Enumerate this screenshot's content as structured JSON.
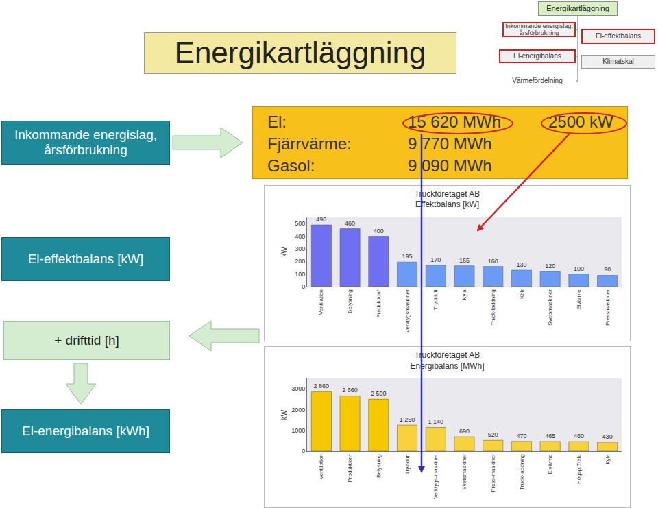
{
  "slide": {
    "title": "Energikartläggning",
    "hierarchy": {
      "root": "Energikartläggning",
      "items": [
        "Inkommande energislag, årsförbrukning",
        "El-energibalans",
        "Värmefördelning"
      ],
      "side_items": [
        "El-effektbalans",
        "Klimatskal"
      ]
    },
    "steps": [
      "Inkommande energislag, årsförbrukning",
      "El-effektbalans [kW]",
      "+ drifttid [h]",
      "El-energibalans [kWh]"
    ],
    "consumption": [
      {
        "label": "El:",
        "value": "15 620 MWh",
        "power": "2500 kW"
      },
      {
        "label": "Fjärrvärme:",
        "value": "9 770 MWh"
      },
      {
        "label": "Gasol:",
        "value": "9 090 MWh"
      }
    ]
  },
  "chart_data": [
    {
      "type": "bar",
      "title": [
        "Truckföretaget AB",
        "Effektbalans [kW]"
      ],
      "y_label": "kW",
      "categories": [
        "Ventilation",
        "Belysning",
        "Produktion*",
        "Verktygsmaskiner",
        "Tryckluft",
        "Kyla",
        "Truck-laddning",
        "Kök",
        "Svetsmaskiner",
        "Elvärme",
        "Pressmaskiner"
      ],
      "values": [
        490,
        460,
        400,
        195,
        170,
        165,
        160,
        130,
        120,
        100,
        90
      ],
      "colors": [
        "#6f6ff2",
        "#6f6ff2",
        "#6f6ff2",
        "#6a9cf5",
        "#6a9cf5",
        "#6a9cf5",
        "#6a9cf5",
        "#6a9cf5",
        "#6a9cf5",
        "#6a9cf5",
        "#6a9cf5"
      ],
      "ylim": [
        0,
        550
      ],
      "yticks": [
        0,
        100,
        200,
        300,
        400,
        500
      ],
      "grid": false,
      "data_labels": true
    },
    {
      "type": "bar",
      "title": [
        "Truckföretaget AB",
        "Energibalans [MWh]"
      ],
      "y_label": "kW",
      "categories": [
        "Ventilation",
        "Produktion*",
        "Belysning",
        "Tryckluft",
        "Verktygs-maskiner",
        "Svetsmaskiner",
        "Press-maskiner",
        "Truck-laddning",
        "Elvärme",
        "Högsp.Trafo",
        "Kyla"
      ],
      "values": [
        2860,
        2660,
        2500,
        1250,
        1140,
        690,
        520,
        470,
        465,
        460,
        430
      ],
      "value_labels": [
        "2 860",
        "2 660",
        "2 500",
        "1 250",
        "1 140",
        "690",
        "520",
        "470",
        "465",
        "460",
        "430"
      ],
      "colors": [
        "#f5c800",
        "#f5c800",
        "#f5c800",
        "#f7d23a",
        "#f7d23a",
        "#f7d23a",
        "#f7d23a",
        "#f7d23a",
        "#f7d23a",
        "#f7d23a",
        "#f7d23a"
      ],
      "ylim": [
        0,
        3500
      ],
      "yticks": [
        0,
        1000,
        2000,
        3000
      ],
      "grid": false,
      "data_labels": true
    }
  ]
}
